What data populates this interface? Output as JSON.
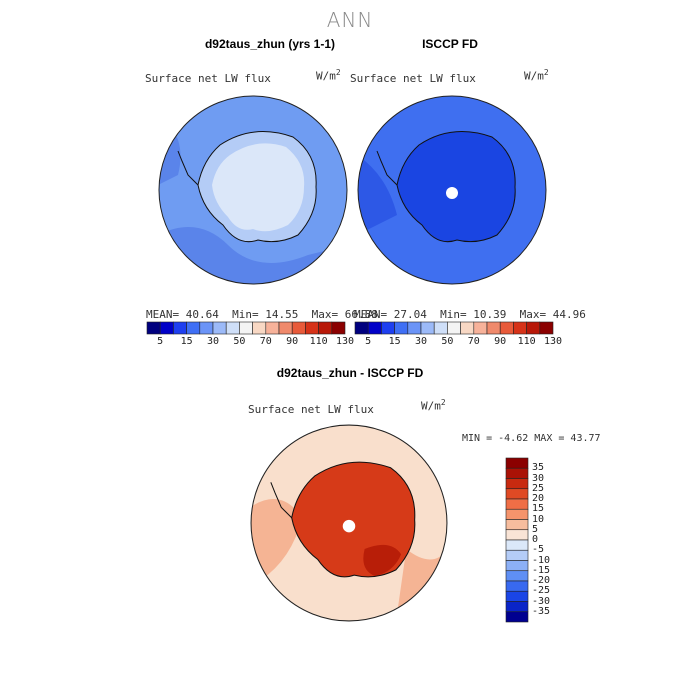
{
  "figure": {
    "title": "ANN"
  },
  "panels": [
    {
      "title": "d92taus_zhun (yrs 1-1)",
      "variable": "Surface net LW flux",
      "units": "W/m",
      "units_sup": "2",
      "stats": {
        "mean_label": "MEAN=",
        "mean": "40.64",
        "min_label": "Min=",
        "min": "14.55",
        "max_label": "Max=",
        "max": "66.88"
      }
    },
    {
      "title": "ISCCP FD",
      "variable": "Surface net LW flux",
      "units": "W/m",
      "units_sup": "2",
      "stats": {
        "mean_label": "MEAN=",
        "mean": "27.04",
        "min_label": "Min=",
        "min": "10.39",
        "max_label": "Max=",
        "max": "44.96"
      }
    },
    {
      "title": "d92taus_zhun - ISCCP FD",
      "variable": "Surface net LW flux",
      "units": "W/m",
      "units_sup": "2",
      "stats": {
        "min_label": "MIN =",
        "min": "-4.62",
        "max_label": "MAX =",
        "max": "43.77"
      }
    }
  ],
  "colorbar_horizontal": {
    "colors": [
      "#00007f",
      "#0000c8",
      "#1e3ff0",
      "#3f6ff5",
      "#6b94f7",
      "#9cbaf8",
      "#cfdff8",
      "#f4f4f4",
      "#f8d8c4",
      "#f7b29a",
      "#f08a6c",
      "#e85a3a",
      "#d63218",
      "#b81808",
      "#8b0000"
    ],
    "labels": [
      "5",
      "15",
      "30",
      "50",
      "70",
      "90",
      "110",
      "130"
    ]
  },
  "colorbar_vertical": {
    "colors": [
      "#8b0000",
      "#aa1206",
      "#c82a10",
      "#e04a24",
      "#ef6e46",
      "#f5946c",
      "#f7bd9e",
      "#f9e4d6",
      "#dbe8f9",
      "#b4ccf7",
      "#8cb0f6",
      "#5f8ff4",
      "#3869f0",
      "#1a45e6",
      "#0a24c8",
      "#000090"
    ],
    "labels": [
      "35",
      "30",
      "25",
      "20",
      "15",
      "10",
      "5",
      "0",
      "-5",
      "-10",
      "-15",
      "-20",
      "-25",
      "-30",
      "-35"
    ]
  },
  "map_colors": {
    "model_ocean": "#6f9cf2",
    "model_ocean_dark": "#5a84ea",
    "model_ice": "#dbe7f9",
    "model_ice_mid": "#b4ccf6",
    "obs_ocean": "#3f6ff0",
    "obs_ocean_dark": "#2d58e6",
    "obs_ice": "#1a45e2",
    "diff_ocean": "#f9dfcc",
    "diff_ocean_mid": "#f5b494",
    "diff_ice": "#d63a18",
    "diff_ice_dark": "#b81e08",
    "coast": "#111111"
  }
}
